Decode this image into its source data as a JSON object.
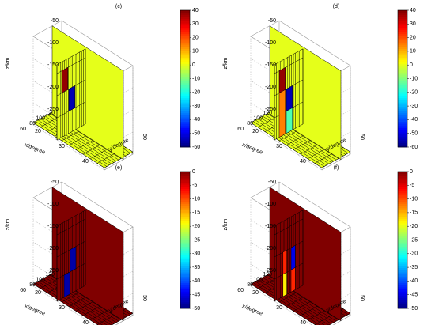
{
  "figure": {
    "panels": [
      {
        "id": "c",
        "title": "(c)",
        "type": "3d-voxel-slices",
        "xlabel": "x/degree",
        "ylabel": "y/degree",
        "zlabel": "z/km",
        "xticks": [
          "60",
          "80",
          "100",
          "120"
        ],
        "yticks": [
          "20",
          "30",
          "40",
          "50"
        ],
        "zticks": [
          "-50",
          "-100",
          "-150",
          "-200",
          "-250"
        ],
        "clim": [
          -60,
          40
        ],
        "colorbar_ticks": [
          "40",
          "30",
          "20",
          "10",
          "0",
          "-10",
          "-20",
          "-30",
          "-40",
          "-50",
          "-60"
        ],
        "background_value": 0,
        "anomalies": [
          {
            "name": "low-velocity block",
            "value": -55
          },
          {
            "name": "high-velocity block",
            "value": 38
          }
        ]
      },
      {
        "id": "d",
        "title": "(d)",
        "type": "3d-voxel-slices",
        "xlabel": "x/degree",
        "ylabel": "y/degree",
        "zlabel": "z/km",
        "xticks": [
          "60",
          "80",
          "100",
          "120"
        ],
        "yticks": [
          "20",
          "30",
          "40",
          "50"
        ],
        "zticks": [
          "-50",
          "-100",
          "-150",
          "-200",
          "-250"
        ],
        "clim": [
          -60,
          40
        ],
        "colorbar_ticks": [
          "40",
          "30",
          "20",
          "10",
          "0",
          "-10",
          "-20",
          "-30",
          "-40",
          "-50",
          "-60"
        ],
        "background_value": 0,
        "anomalies": [
          {
            "name": "low-velocity block",
            "value": -55
          },
          {
            "name": "high-velocity block",
            "value": 38
          },
          {
            "name": "smearing below low block",
            "value": -15
          },
          {
            "name": "smearing below high block",
            "value": 15
          }
        ]
      },
      {
        "id": "e",
        "title": "(e)",
        "type": "3d-voxel-slices",
        "xlabel": "x/degree",
        "ylabel": "y/degree",
        "zlabel": "z/km",
        "xticks": [
          "60",
          "80",
          "100",
          "120"
        ],
        "yticks": [
          "20",
          "30",
          "40",
          "50"
        ],
        "zticks": [
          "-50",
          "-100",
          "-150",
          "-200",
          "-250"
        ],
        "clim": [
          -50,
          0
        ],
        "colorbar_ticks": [
          "0",
          "-5",
          "-10",
          "-15",
          "-20",
          "-25",
          "-30",
          "-35",
          "-40",
          "-45",
          "-50"
        ],
        "background_value": 0,
        "anomalies": [
          {
            "name": "upper low-velocity block",
            "value": -48
          },
          {
            "name": "lower low-velocity block",
            "value": -48
          }
        ]
      },
      {
        "id": "f",
        "title": "(f)",
        "type": "3d-voxel-slices",
        "xlabel": "x/degree",
        "ylabel": "y/degree",
        "zlabel": "z/km",
        "xticks": [
          "60",
          "80",
          "100",
          "120"
        ],
        "yticks": [
          "20",
          "30",
          "40",
          "50"
        ],
        "zticks": [
          "-50",
          "-100",
          "-150",
          "-200",
          "-250"
        ],
        "clim": [
          -50,
          0
        ],
        "colorbar_ticks": [
          "0",
          "-5",
          "-10",
          "-15",
          "-20",
          "-25",
          "-30",
          "-35",
          "-40",
          "-45",
          "-50"
        ],
        "background_value": 0,
        "anomalies": [
          {
            "name": "left recovered upper",
            "value": -45
          },
          {
            "name": "left recovered lower",
            "value": -8
          },
          {
            "name": "right recovered upper",
            "value": -8
          },
          {
            "name": "right recovered lower",
            "value": -18
          }
        ]
      }
    ]
  },
  "chart_data": [
    {
      "type": "heatmap",
      "title": "(c)",
      "xlabel": "x/degree",
      "ylabel": "y/degree",
      "zlabel": "z/km",
      "xlim": [
        60,
        120
      ],
      "ylim": [
        20,
        50
      ],
      "zlim": [
        -250,
        -50
      ],
      "clim": [
        -60,
        40
      ],
      "values": [
        0,
        -55,
        38
      ]
    },
    {
      "type": "heatmap",
      "title": "(d)",
      "xlabel": "x/degree",
      "ylabel": "y/degree",
      "zlabel": "z/km",
      "xlim": [
        60,
        120
      ],
      "ylim": [
        20,
        50
      ],
      "zlim": [
        -250,
        -50
      ],
      "clim": [
        -60,
        40
      ],
      "values": [
        0,
        -55,
        38,
        -15,
        15
      ]
    },
    {
      "type": "heatmap",
      "title": "(e)",
      "xlabel": "x/degree",
      "ylabel": "y/degree",
      "zlabel": "z/km",
      "xlim": [
        60,
        120
      ],
      "ylim": [
        20,
        50
      ],
      "zlim": [
        -250,
        -50
      ],
      "clim": [
        -50,
        0
      ],
      "values": [
        0,
        -48,
        -48
      ]
    },
    {
      "type": "heatmap",
      "title": "(f)",
      "xlabel": "x/degree",
      "ylabel": "y/degree",
      "zlabel": "z/km",
      "xlim": [
        60,
        120
      ],
      "ylim": [
        20,
        50
      ],
      "zlim": [
        -250,
        -50
      ],
      "clim": [
        -50,
        0
      ],
      "values": [
        0,
        -45,
        -8,
        -8,
        -18
      ]
    }
  ]
}
